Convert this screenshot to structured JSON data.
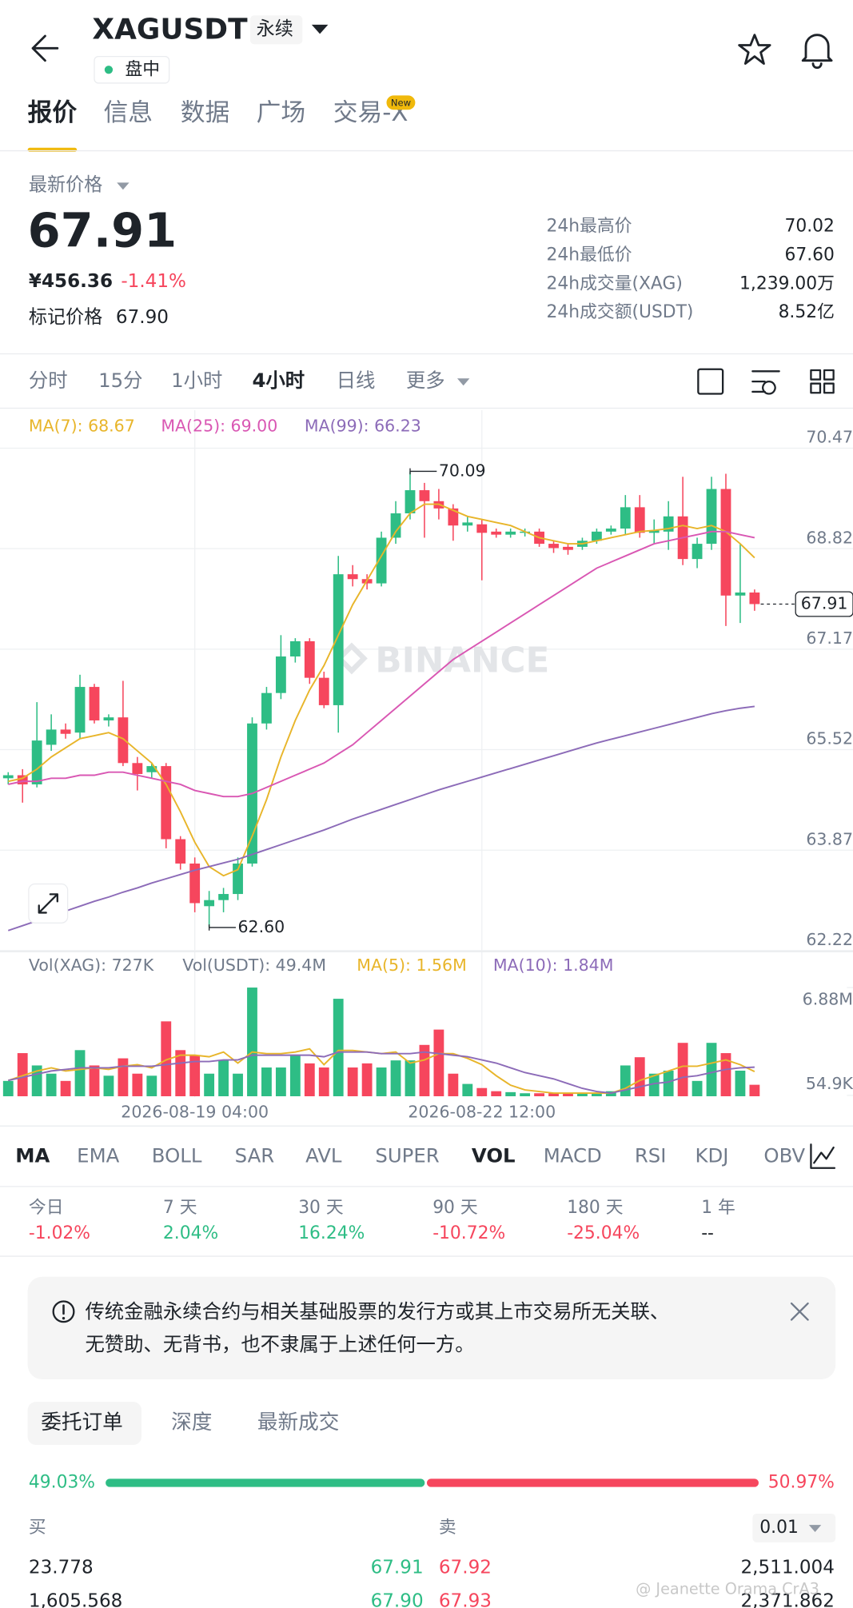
{
  "header": {
    "symbol": "XAGUSDT",
    "contract": "永续",
    "status": "盘中",
    "tabs": [
      "报价",
      "信息",
      "数据",
      "广场",
      "交易-X"
    ],
    "active_tab": 0,
    "badge": "New"
  },
  "quote": {
    "label": "最新价格",
    "last": "67.91",
    "cny": "¥456.36",
    "change": "-1.41%",
    "mark_label": "标记价格",
    "mark": "67.90",
    "stats": [
      {
        "label": "24h最高价",
        "value": "70.02"
      },
      {
        "label": "24h最低价",
        "value": "67.60"
      },
      {
        "label": "24h成交量(XAG)",
        "value": "1,239.00万"
      },
      {
        "label": "24h成交额(USDT)",
        "value": "8.52亿"
      }
    ]
  },
  "intervals": {
    "items": [
      "分时",
      "15分",
      "1小时",
      "4小时",
      "日线",
      "更多"
    ],
    "active": 3
  },
  "chart_data": [
    {
      "type": "candlestick",
      "watermark": "BINANCE",
      "up_color": "#2ebd85",
      "down_color": "#f6465d",
      "ylim": [
        62.22,
        70.47
      ],
      "yticks": [
        70.47,
        68.82,
        67.17,
        65.52,
        63.87,
        62.22
      ],
      "grid": true,
      "open": [
        65.05,
        65.1,
        64.95,
        65.6,
        65.85,
        65.8,
        66.55,
        66.0,
        66.05,
        65.3,
        65.15,
        65.25,
        64.05,
        63.65,
        62.95,
        63.05,
        63.15,
        63.65,
        65.95,
        66.45,
        67.05,
        67.3,
        66.7,
        66.25,
        68.4,
        68.32,
        68.25,
        69.0,
        69.4,
        69.78,
        69.6,
        69.48,
        69.2,
        69.22,
        69.1,
        69.05,
        69.08,
        69.1,
        68.9,
        68.85,
        68.85,
        68.95,
        69.1,
        69.15,
        69.5,
        69.08,
        69.1,
        69.35,
        68.65,
        68.9,
        69.8,
        68.05,
        68.1
      ],
      "high": [
        65.15,
        65.2,
        66.3,
        66.1,
        65.95,
        66.75,
        66.6,
        66.1,
        66.65,
        65.4,
        65.3,
        65.3,
        64.1,
        63.75,
        63.2,
        63.25,
        63.75,
        66.05,
        66.55,
        67.4,
        67.35,
        67.35,
        66.8,
        68.7,
        68.55,
        68.4,
        69.1,
        69.6,
        70.09,
        69.9,
        69.8,
        69.55,
        69.35,
        69.3,
        69.15,
        69.15,
        69.15,
        69.15,
        68.95,
        68.9,
        69.0,
        69.15,
        69.2,
        69.7,
        69.7,
        69.3,
        69.6,
        70.0,
        69.0,
        70.0,
        70.05,
        68.9,
        68.15
      ],
      "low": [
        64.95,
        64.65,
        64.9,
        65.5,
        65.7,
        65.7,
        65.95,
        65.9,
        65.25,
        64.85,
        65.05,
        63.9,
        63.55,
        62.85,
        62.6,
        62.85,
        63.05,
        63.6,
        65.85,
        66.35,
        66.95,
        66.6,
        66.2,
        65.8,
        68.2,
        68.15,
        68.2,
        68.9,
        69.3,
        69.0,
        69.3,
        68.95,
        69.1,
        68.3,
        69.0,
        69.0,
        69.02,
        68.85,
        68.75,
        68.72,
        68.8,
        68.9,
        69.05,
        69.05,
        69.0,
        68.9,
        68.8,
        68.55,
        68.5,
        68.8,
        67.55,
        67.6,
        67.8
      ],
      "close": [
        65.1,
        64.95,
        65.67,
        65.85,
        65.78,
        66.55,
        66.0,
        66.05,
        65.3,
        65.12,
        65.25,
        64.05,
        63.65,
        63.0,
        63.05,
        63.15,
        63.65,
        65.95,
        66.45,
        67.05,
        67.3,
        66.7,
        66.25,
        68.4,
        68.32,
        68.25,
        69.0,
        69.4,
        69.78,
        69.6,
        69.48,
        69.2,
        69.25,
        69.08,
        69.05,
        69.1,
        69.1,
        68.9,
        68.83,
        68.8,
        68.95,
        69.1,
        69.15,
        69.5,
        69.08,
        69.12,
        69.35,
        68.65,
        68.9,
        69.8,
        68.05,
        68.1,
        67.91
      ],
      "series": [
        {
          "name": "MA(7): 68.67",
          "color": "#e8b52a",
          "values": [
            65.0,
            65.05,
            65.2,
            65.4,
            65.55,
            65.7,
            65.75,
            65.8,
            65.7,
            65.5,
            65.3,
            64.95,
            64.5,
            64.0,
            63.6,
            63.45,
            63.55,
            64.1,
            64.7,
            65.4,
            66.0,
            66.5,
            66.9,
            67.4,
            67.9,
            68.3,
            68.7,
            69.1,
            69.4,
            69.55,
            69.55,
            69.45,
            69.35,
            69.3,
            69.25,
            69.2,
            69.1,
            69.0,
            68.95,
            68.9,
            68.9,
            68.95,
            69.0,
            69.05,
            69.1,
            69.12,
            69.15,
            69.2,
            69.15,
            69.2,
            69.1,
            68.9,
            68.67
          ]
        },
        {
          "name": "MA(25): 69.00",
          "color": "#d957b3",
          "values": [
            64.95,
            65.0,
            65.0,
            65.05,
            65.05,
            65.1,
            65.1,
            65.15,
            65.15,
            65.1,
            65.05,
            65.0,
            64.95,
            64.85,
            64.8,
            64.75,
            64.75,
            64.8,
            64.9,
            65.0,
            65.1,
            65.2,
            65.3,
            65.45,
            65.6,
            65.8,
            66.0,
            66.2,
            66.4,
            66.6,
            66.8,
            67.0,
            67.15,
            67.3,
            67.45,
            67.6,
            67.75,
            67.9,
            68.05,
            68.2,
            68.35,
            68.5,
            68.6,
            68.7,
            68.8,
            68.9,
            68.95,
            69.0,
            69.05,
            69.1,
            69.1,
            69.05,
            69.0
          ]
        },
        {
          "name": "MA(99): 66.23",
          "color": "#8c6bb8",
          "values": [
            62.55,
            62.63,
            62.71,
            62.79,
            62.87,
            62.95,
            63.03,
            63.1,
            63.18,
            63.25,
            63.33,
            63.4,
            63.47,
            63.54,
            63.6,
            63.66,
            63.72,
            63.8,
            63.88,
            63.96,
            64.04,
            64.12,
            64.2,
            64.29,
            64.38,
            64.46,
            64.54,
            64.62,
            64.7,
            64.78,
            64.86,
            64.93,
            65.0,
            65.07,
            65.14,
            65.21,
            65.28,
            65.35,
            65.42,
            65.49,
            65.56,
            65.63,
            65.69,
            65.75,
            65.81,
            65.87,
            65.93,
            65.99,
            66.05,
            66.11,
            66.16,
            66.2,
            66.23
          ]
        }
      ],
      "annotations": [
        {
          "value": 70.09,
          "label": "70.09"
        },
        {
          "value": 62.6,
          "label": "62.60"
        }
      ],
      "current": {
        "value": 67.91,
        "label": "67.91"
      }
    },
    {
      "type": "bar",
      "legend": [
        {
          "text": "Vol(XAG): 727K",
          "color": "#707a8a"
        },
        {
          "text": "Vol(USDT): 49.4M",
          "color": "#707a8a"
        }
      ],
      "categories": [
        null,
        null,
        null,
        null,
        null,
        null,
        null,
        null,
        null,
        null,
        null,
        null,
        null,
        "2026-08-19 04:00",
        null,
        null,
        null,
        null,
        null,
        null,
        null,
        null,
        null,
        null,
        null,
        null,
        null,
        null,
        null,
        null,
        null,
        null,
        null,
        "2026-08-22 12:00",
        null,
        null,
        null,
        null,
        null,
        null,
        null,
        null,
        null,
        null,
        null,
        null,
        null,
        null,
        null,
        null,
        null,
        null,
        null
      ],
      "values": [
        0.97,
        2.73,
        1.95,
        1.43,
        0.97,
        2.92,
        1.95,
        1.3,
        2.4,
        1.43,
        1.3,
        4.74,
        2.92,
        2.6,
        1.43,
        2.27,
        1.43,
        6.88,
        1.82,
        1.82,
        2.6,
        2.08,
        1.82,
        6.17,
        1.82,
        2.08,
        1.82,
        2.27,
        2.27,
        3.25,
        4.22,
        1.43,
        0.78,
        0.52,
        0.32,
        0.26,
        0.19,
        0.19,
        0.19,
        0.19,
        0.19,
        0.19,
        0.32,
        1.95,
        2.47,
        1.43,
        1.62,
        3.38,
        0.97,
        3.38,
        2.73,
        1.62,
        0.727
      ],
      "ylim": [
        0,
        6.88
      ],
      "yticks": [
        {
          "value": 6.88,
          "label": "6.88M"
        },
        {
          "value": 0.0549,
          "label": "54.9K"
        }
      ],
      "series": [
        {
          "name": "MA(5): 1.56M",
          "color": "#e8b52a",
          "values": [
            1.0,
            1.3,
            1.6,
            1.8,
            1.6,
            1.7,
            1.8,
            1.7,
            1.9,
            2.0,
            1.8,
            2.3,
            2.6,
            2.6,
            2.5,
            2.8,
            2.1,
            2.8,
            2.7,
            2.7,
            2.8,
            3.0,
            2.0,
            2.9,
            2.9,
            2.8,
            2.7,
            2.8,
            2.1,
            2.3,
            2.7,
            2.7,
            2.4,
            2.0,
            1.3,
            0.7,
            0.4,
            0.3,
            0.2,
            0.2,
            0.2,
            0.2,
            0.2,
            0.5,
            1.0,
            1.3,
            1.6,
            1.9,
            1.9,
            2.1,
            2.3,
            2.0,
            1.56
          ]
        },
        {
          "name": "MA(10): 1.84M",
          "color": "#8c6bb8",
          "values": [
            1.0,
            1.2,
            1.4,
            1.6,
            1.7,
            1.8,
            1.8,
            1.8,
            1.9,
            1.9,
            1.9,
            2.0,
            2.1,
            2.2,
            2.2,
            2.3,
            2.3,
            2.6,
            2.6,
            2.6,
            2.6,
            2.6,
            2.5,
            2.8,
            2.8,
            2.8,
            2.7,
            2.7,
            2.7,
            2.8,
            2.7,
            2.6,
            2.5,
            2.3,
            2.1,
            1.8,
            1.5,
            1.3,
            1.1,
            0.8,
            0.5,
            0.3,
            0.2,
            0.4,
            0.6,
            0.8,
            0.9,
            1.2,
            1.3,
            1.5,
            1.7,
            1.8,
            1.84
          ]
        }
      ]
    }
  ],
  "indicators": {
    "items": [
      "MA",
      "EMA",
      "BOLL",
      "SAR",
      "AVL",
      "SUPER",
      "VOL",
      "MACD",
      "RSI",
      "KDJ",
      "OBV"
    ],
    "active": [
      0,
      6
    ]
  },
  "performance": [
    {
      "label": "今日",
      "value": "-1.02%"
    },
    {
      "label": "7 天",
      "value": "2.04%"
    },
    {
      "label": "30 天",
      "value": "16.24%"
    },
    {
      "label": "90 天",
      "value": "-10.72%"
    },
    {
      "label": "180 天",
      "value": "-25.04%"
    },
    {
      "label": "1 年",
      "value": "--"
    }
  ],
  "notice": {
    "lines": [
      "传统金融永续合约与相关基础股票的发行方或其上市交易所无关联、",
      "无赞助、无背书，也不隶属于上述任何一方。"
    ]
  },
  "orderbook": {
    "tabs": [
      "委托订单",
      "深度",
      "最新成交"
    ],
    "active_tab": 0,
    "ratio": {
      "values": [
        49.03,
        50.97
      ],
      "value_labels": [
        "49.03%",
        "50.97%"
      ]
    },
    "buy_label": "买",
    "sell_label": "卖",
    "precision": "0.01",
    "rows": [
      [
        "23.778",
        "67.91",
        "67.92",
        "2,511.004"
      ],
      [
        "1,605.568",
        "67.90",
        "67.93",
        "2,371.862"
      ]
    ]
  },
  "watermark": "@ Jeanette Orama CrA3"
}
